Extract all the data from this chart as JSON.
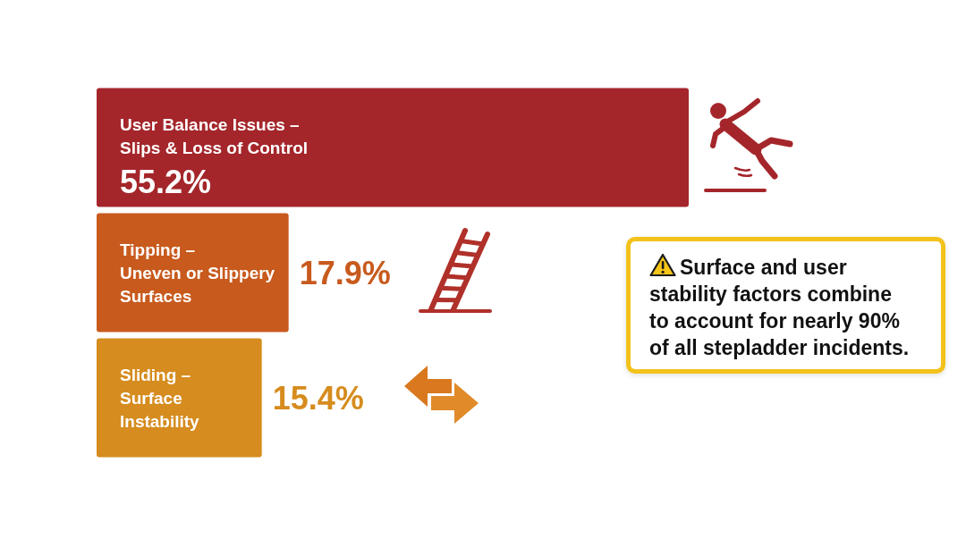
{
  "chart_data": {
    "type": "bar",
    "orientation": "horizontal",
    "categories": [
      "User Balance Issues –\nSlips & Loss of Control",
      "Tipping –\nUneven or Slippery\nSurfaces",
      "Sliding –\nSurface\nInstability"
    ],
    "values": [
      55.2,
      17.9,
      15.4
    ],
    "colors": [
      "#a4262b",
      "#c85a1d",
      "#d68c1e"
    ],
    "value_labels": [
      "55.2%",
      "17.9%",
      "15.4%"
    ],
    "tick_labels": "y",
    "annotations": [
      "Surface and user stability factors combine to account for nearly 90% of all stepladder incidents."
    ]
  }
}
